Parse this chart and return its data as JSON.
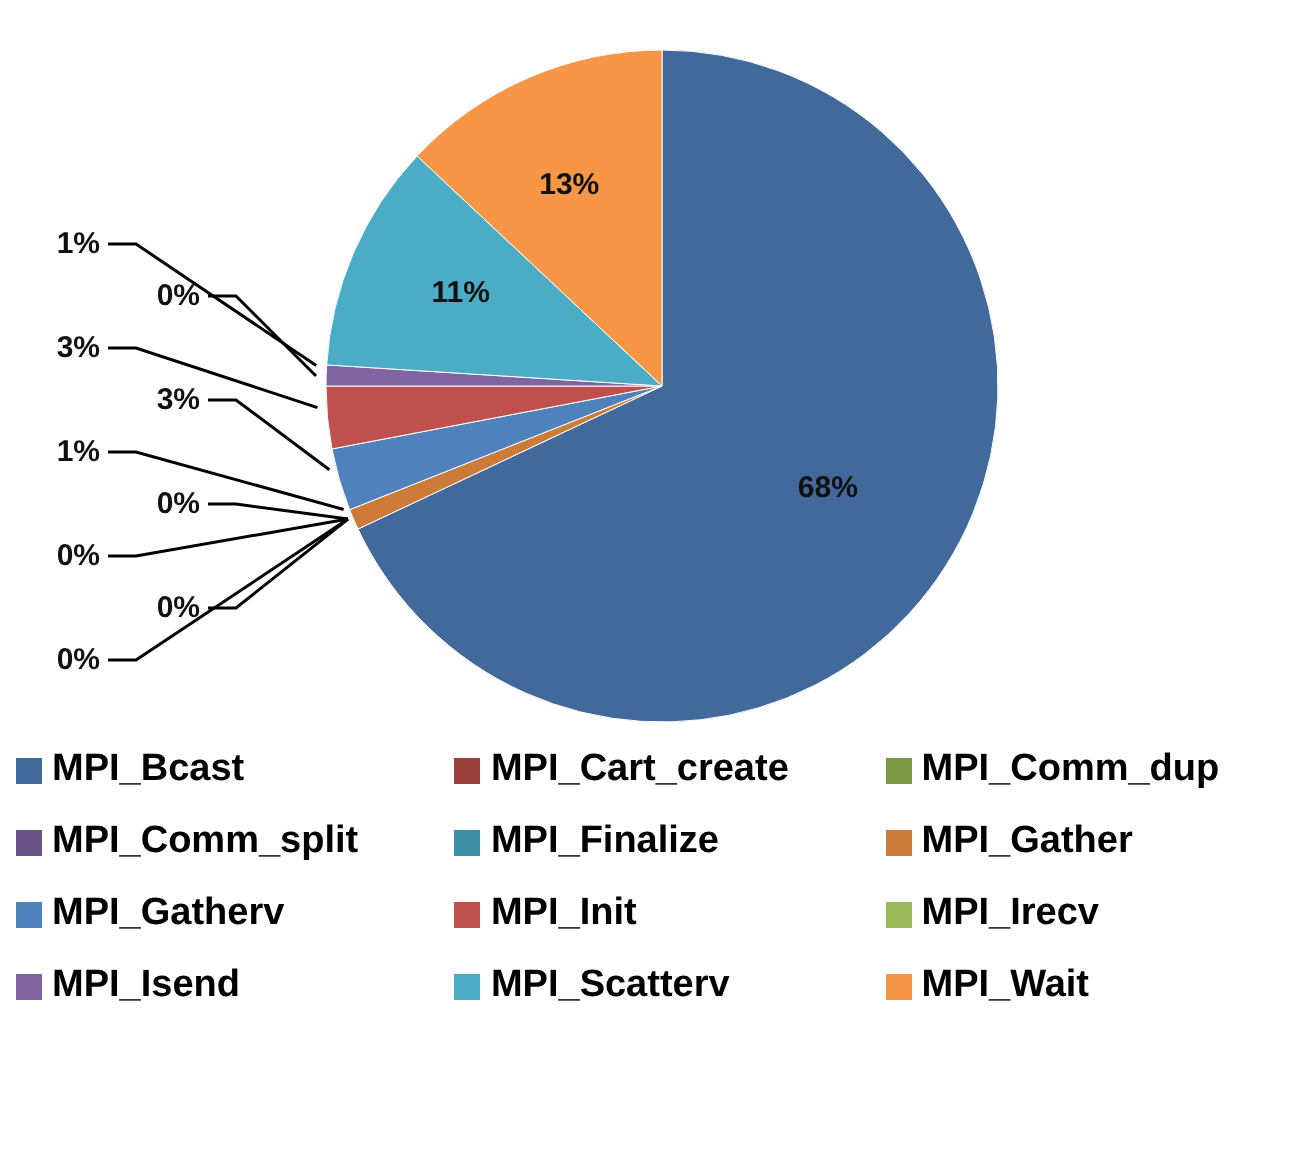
{
  "chart_data": {
    "type": "pie",
    "categories": [
      "MPI_Bcast",
      "MPI_Cart_create",
      "MPI_Comm_dup",
      "MPI_Comm_split",
      "MPI_Finalize",
      "MPI_Gather",
      "MPI_Gatherv",
      "MPI_Init",
      "MPI_Irecv",
      "MPI_Isend",
      "MPI_Scatterv",
      "MPI_Wait"
    ],
    "values": [
      68,
      0,
      0,
      0,
      0,
      1,
      3,
      3,
      0,
      1,
      11,
      13
    ],
    "value_labels": [
      "68%",
      "0%",
      "0%",
      "0%",
      "0%",
      "1%",
      "3%",
      "3%",
      "0%",
      "1%",
      "11%",
      "13%"
    ],
    "colors": [
      "#41699b",
      "#9b3f3c",
      "#7e9a45",
      "#6a5387",
      "#3a8ea5",
      "#cc7a38",
      "#4f81bd",
      "#c0504d",
      "#9bbb59",
      "#8064a2",
      "#4bacc6",
      "#f79646"
    ],
    "legend": "bottom"
  }
}
